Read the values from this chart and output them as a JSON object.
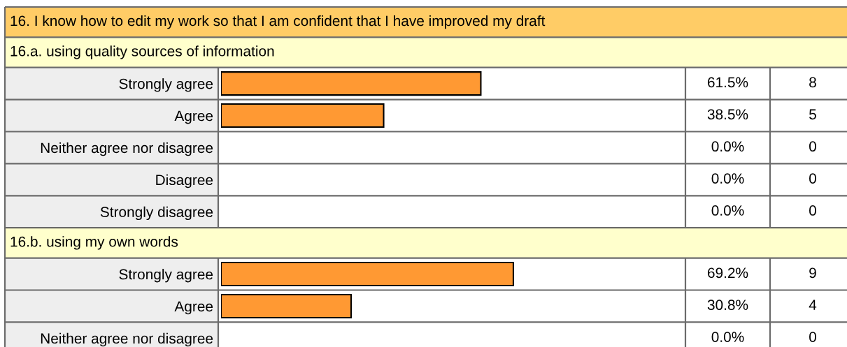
{
  "chart_data": [
    {
      "type": "bar",
      "orientation": "horizontal",
      "tick_labels": "y",
      "title": "16. I know how to edit my work so that I am confident that I have improved my draft",
      "subtitle": "16.a. using quality sources of information",
      "categories": [
        "Strongly agree",
        "Agree",
        "Neither agree nor disagree",
        "Disagree",
        "Strongly disagree"
      ],
      "series": [
        {
          "values": [
            61.5,
            38.5,
            0,
            0,
            0
          ],
          "value_labels": [
            "61.5%",
            "38.5%",
            "0.0%",
            "0.0%",
            "0.0%"
          ],
          "color": "#ff9933"
        }
      ],
      "annotations": [
        "8",
        "5",
        "0",
        "0",
        "0"
      ]
    },
    {
      "type": "bar",
      "orientation": "horizontal",
      "tick_labels": "y",
      "subtitle": "16.b. using my own words",
      "categories": [
        "Strongly agree",
        "Agree",
        "Neither agree nor disagree"
      ],
      "series": [
        {
          "values": [
            69.2,
            30.8,
            0
          ],
          "value_labels": [
            "69.2%",
            "30.8%",
            "0.0%"
          ],
          "color": "#ff9933"
        }
      ],
      "annotations": [
        "9",
        "4",
        "0"
      ]
    }
  ]
}
